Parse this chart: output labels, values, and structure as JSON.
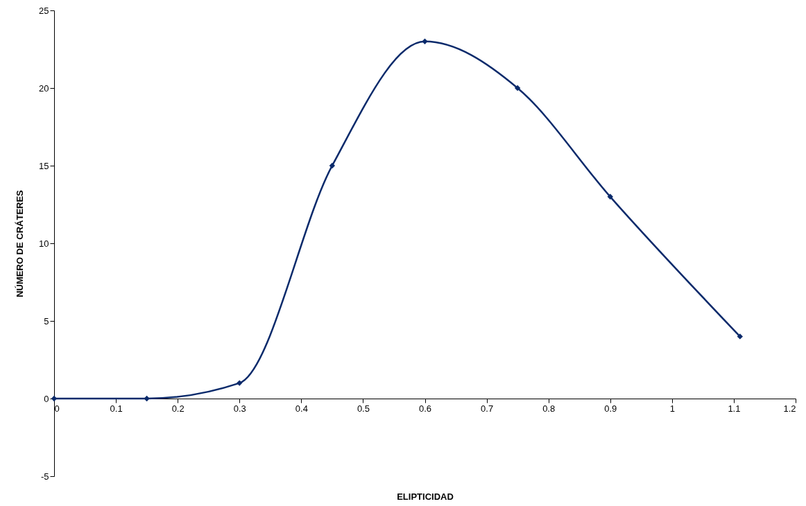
{
  "chart_data": {
    "type": "line",
    "xlabel": "ELIPTICIDAD",
    "ylabel": "NÚMERO DE CRÁTERES",
    "x": [
      0,
      0.15,
      0.3,
      0.45,
      0.6,
      0.75,
      0.9,
      1.11
    ],
    "series": [
      {
        "color": "#0a2a6b",
        "values": [
          0,
          0,
          1,
          15,
          23,
          20,
          13,
          4
        ]
      }
    ],
    "xlim": [
      0,
      1.2
    ],
    "xticks": [
      0,
      0.1,
      0.2,
      0.3,
      0.4,
      0.5,
      0.6,
      0.7,
      0.8,
      0.9,
      1,
      1.1,
      1.2
    ],
    "ylim": [
      -5,
      25
    ],
    "yticks": [
      -5,
      0,
      5,
      10,
      15,
      20,
      25
    ],
    "grid": false,
    "marker": "diamond",
    "line_style": "solid"
  }
}
